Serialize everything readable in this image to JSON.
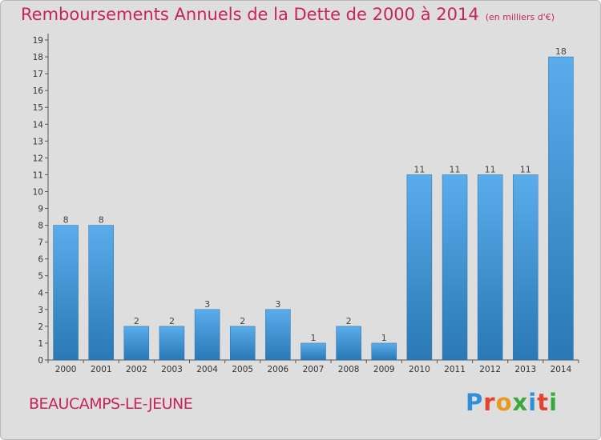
{
  "header": {
    "title": "Remboursements Annuels de la Dette de 2000 à 2014",
    "unit": "(en milliers d'€)"
  },
  "footer": {
    "commune": "BEAUCAMPS-LE-JEUNE",
    "logo_text": "Proxiti"
  },
  "colors": {
    "title": "#c8235a",
    "bar_top": "#5aacea",
    "bar_bottom": "#2a78b6",
    "background": "#dedede"
  },
  "chart_data": {
    "type": "bar",
    "title": "Remboursements Annuels de la Dette de 2000 à 2014",
    "xlabel": "",
    "ylabel": "",
    "categories": [
      "2000",
      "2001",
      "2002",
      "2003",
      "2004",
      "2005",
      "2006",
      "2007",
      "2008",
      "2009",
      "2010",
      "2011",
      "2012",
      "2013",
      "2014"
    ],
    "values": [
      8,
      8,
      2,
      2,
      3,
      2,
      3,
      1,
      2,
      1,
      11,
      11,
      11,
      11,
      18
    ],
    "ylim": [
      0,
      19
    ],
    "yticks": [
      0,
      1,
      2,
      3,
      4,
      5,
      6,
      7,
      8,
      9,
      10,
      11,
      12,
      13,
      14,
      15,
      16,
      17,
      18,
      19
    ],
    "grid": false,
    "legend": "none"
  }
}
